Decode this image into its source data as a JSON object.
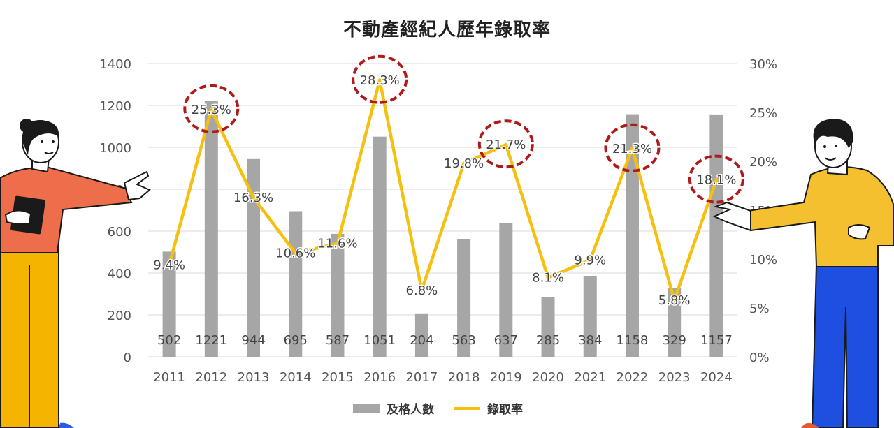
{
  "chart_data": {
    "type": "bar+line",
    "title": "不動產經紀人歷年錄取率",
    "categories": [
      "2011",
      "2012",
      "2013",
      "2014",
      "2015",
      "2016",
      "2017",
      "2018",
      "2019",
      "2020",
      "2021",
      "2022",
      "2023",
      "2024"
    ],
    "series": [
      {
        "name": "及格人數",
        "type": "bar",
        "axis": "left",
        "values": [
          502,
          1221,
          944,
          695,
          587,
          1051,
          204,
          563,
          637,
          285,
          384,
          1158,
          329,
          1157
        ],
        "color": "#a6a6a6"
      },
      {
        "name": "錄取率",
        "type": "line",
        "axis": "right",
        "values": [
          9.4,
          25.3,
          16.3,
          10.6,
          11.6,
          28.3,
          6.8,
          19.8,
          21.7,
          8.1,
          9.9,
          21.3,
          5.8,
          18.1
        ],
        "labels": [
          "9.4%",
          "25.3%",
          "16.3%",
          "10.6%",
          "11.6%",
          "28.3%",
          "6.8%",
          "19.8%",
          "21.7%",
          "8.1%",
          "9.9%",
          "21.3%",
          "5.8%",
          "18.1%"
        ],
        "color": "#f5c010"
      }
    ],
    "y_left": {
      "ylim": [
        0,
        1400
      ],
      "ticks": [
        "0",
        "200",
        "400",
        "600",
        "800",
        "1000",
        "1200",
        "1400"
      ]
    },
    "y_right": {
      "ylim": [
        0,
        30
      ],
      "ticks": [
        "0%",
        "5%",
        "10%",
        "15%",
        "20%",
        "25%",
        "30%"
      ]
    },
    "highlighted_categories": [
      "2012",
      "2016",
      "2019",
      "2022",
      "2024"
    ],
    "highlight_color": "#b01a1a",
    "grid": true,
    "legend_position": "bottom"
  },
  "illustrations": [
    {
      "name": "woman-pointing-with-tablet",
      "side": "left"
    },
    {
      "name": "man-presenting",
      "side": "right"
    }
  ]
}
